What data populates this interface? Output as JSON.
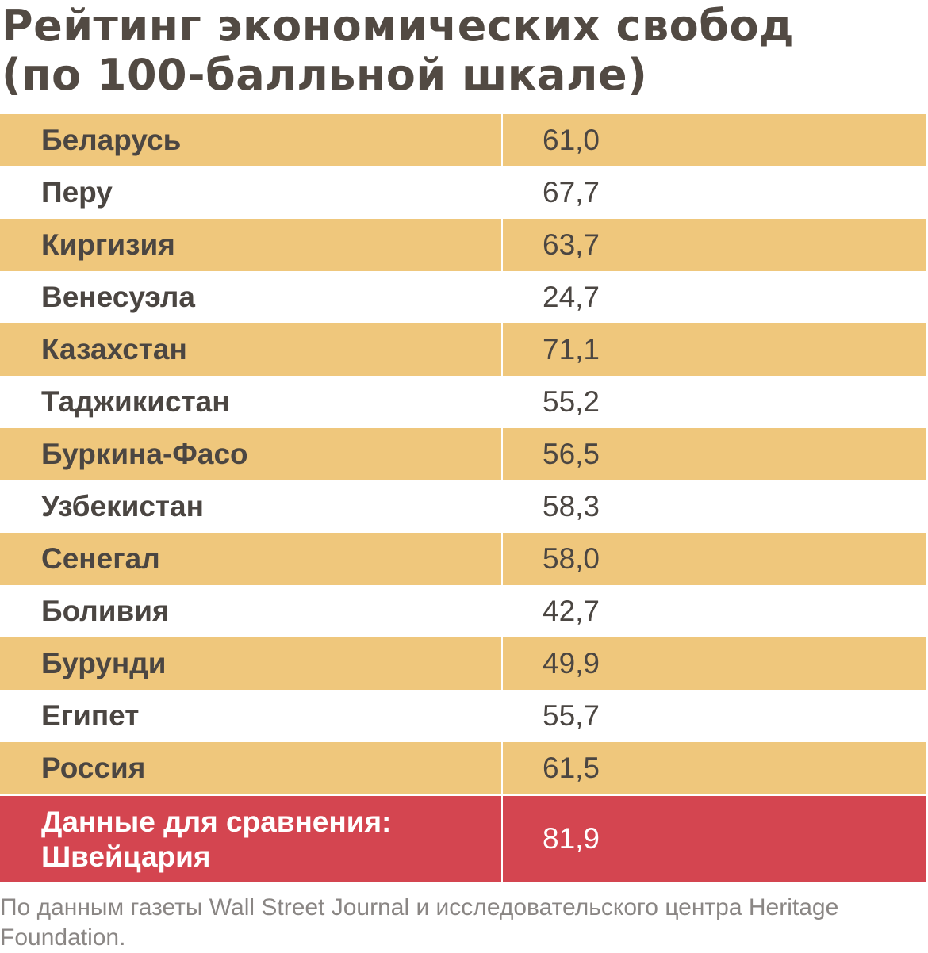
{
  "chart_data": {
    "type": "table",
    "title_lines": [
      "Рейтинг экономических свобод",
      "(по 100-балльной шкале)"
    ],
    "rows": [
      {
        "country": "Беларусь",
        "score_text": "61,0",
        "score": 61.0
      },
      {
        "country": "Перу",
        "score_text": "67,7",
        "score": 67.7
      },
      {
        "country": "Киргизия",
        "score_text": "63,7",
        "score": 63.7
      },
      {
        "country": "Венесуэла",
        "score_text": "24,7",
        "score": 24.7
      },
      {
        "country": "Казахстан",
        "score_text": "71,1",
        "score": 71.1
      },
      {
        "country": "Таджикистан",
        "score_text": "55,2",
        "score": 55.2
      },
      {
        "country": "Буркина-Фасо",
        "score_text": "56,5",
        "score": 56.5
      },
      {
        "country": "Узбекистан",
        "score_text": "58,3",
        "score": 58.3
      },
      {
        "country": "Сенегал",
        "score_text": "58,0",
        "score": 58.0
      },
      {
        "country": "Боливия",
        "score_text": "42,7",
        "score": 42.7
      },
      {
        "country": "Бурунди",
        "score_text": "49,9",
        "score": 49.9
      },
      {
        "country": "Египет",
        "score_text": "55,7",
        "score": 55.7
      },
      {
        "country": "Россия",
        "score_text": "61,5",
        "score": 61.5
      }
    ],
    "comparison": {
      "label_lines": [
        "Данные для сравнения:",
        "Швейцария"
      ],
      "score_text": "81,9",
      "score": 81.9
    },
    "source": "По данным газеты Wall Street Journal и исследовательского центра Heritage Foundation."
  },
  "colors": {
    "alt_row": "#efc77c",
    "plain_row": "#ffffff",
    "highlight_row": "#d44550",
    "text": "#4b4642",
    "title_text": "#524a43",
    "source_text": "#8a8684"
  }
}
